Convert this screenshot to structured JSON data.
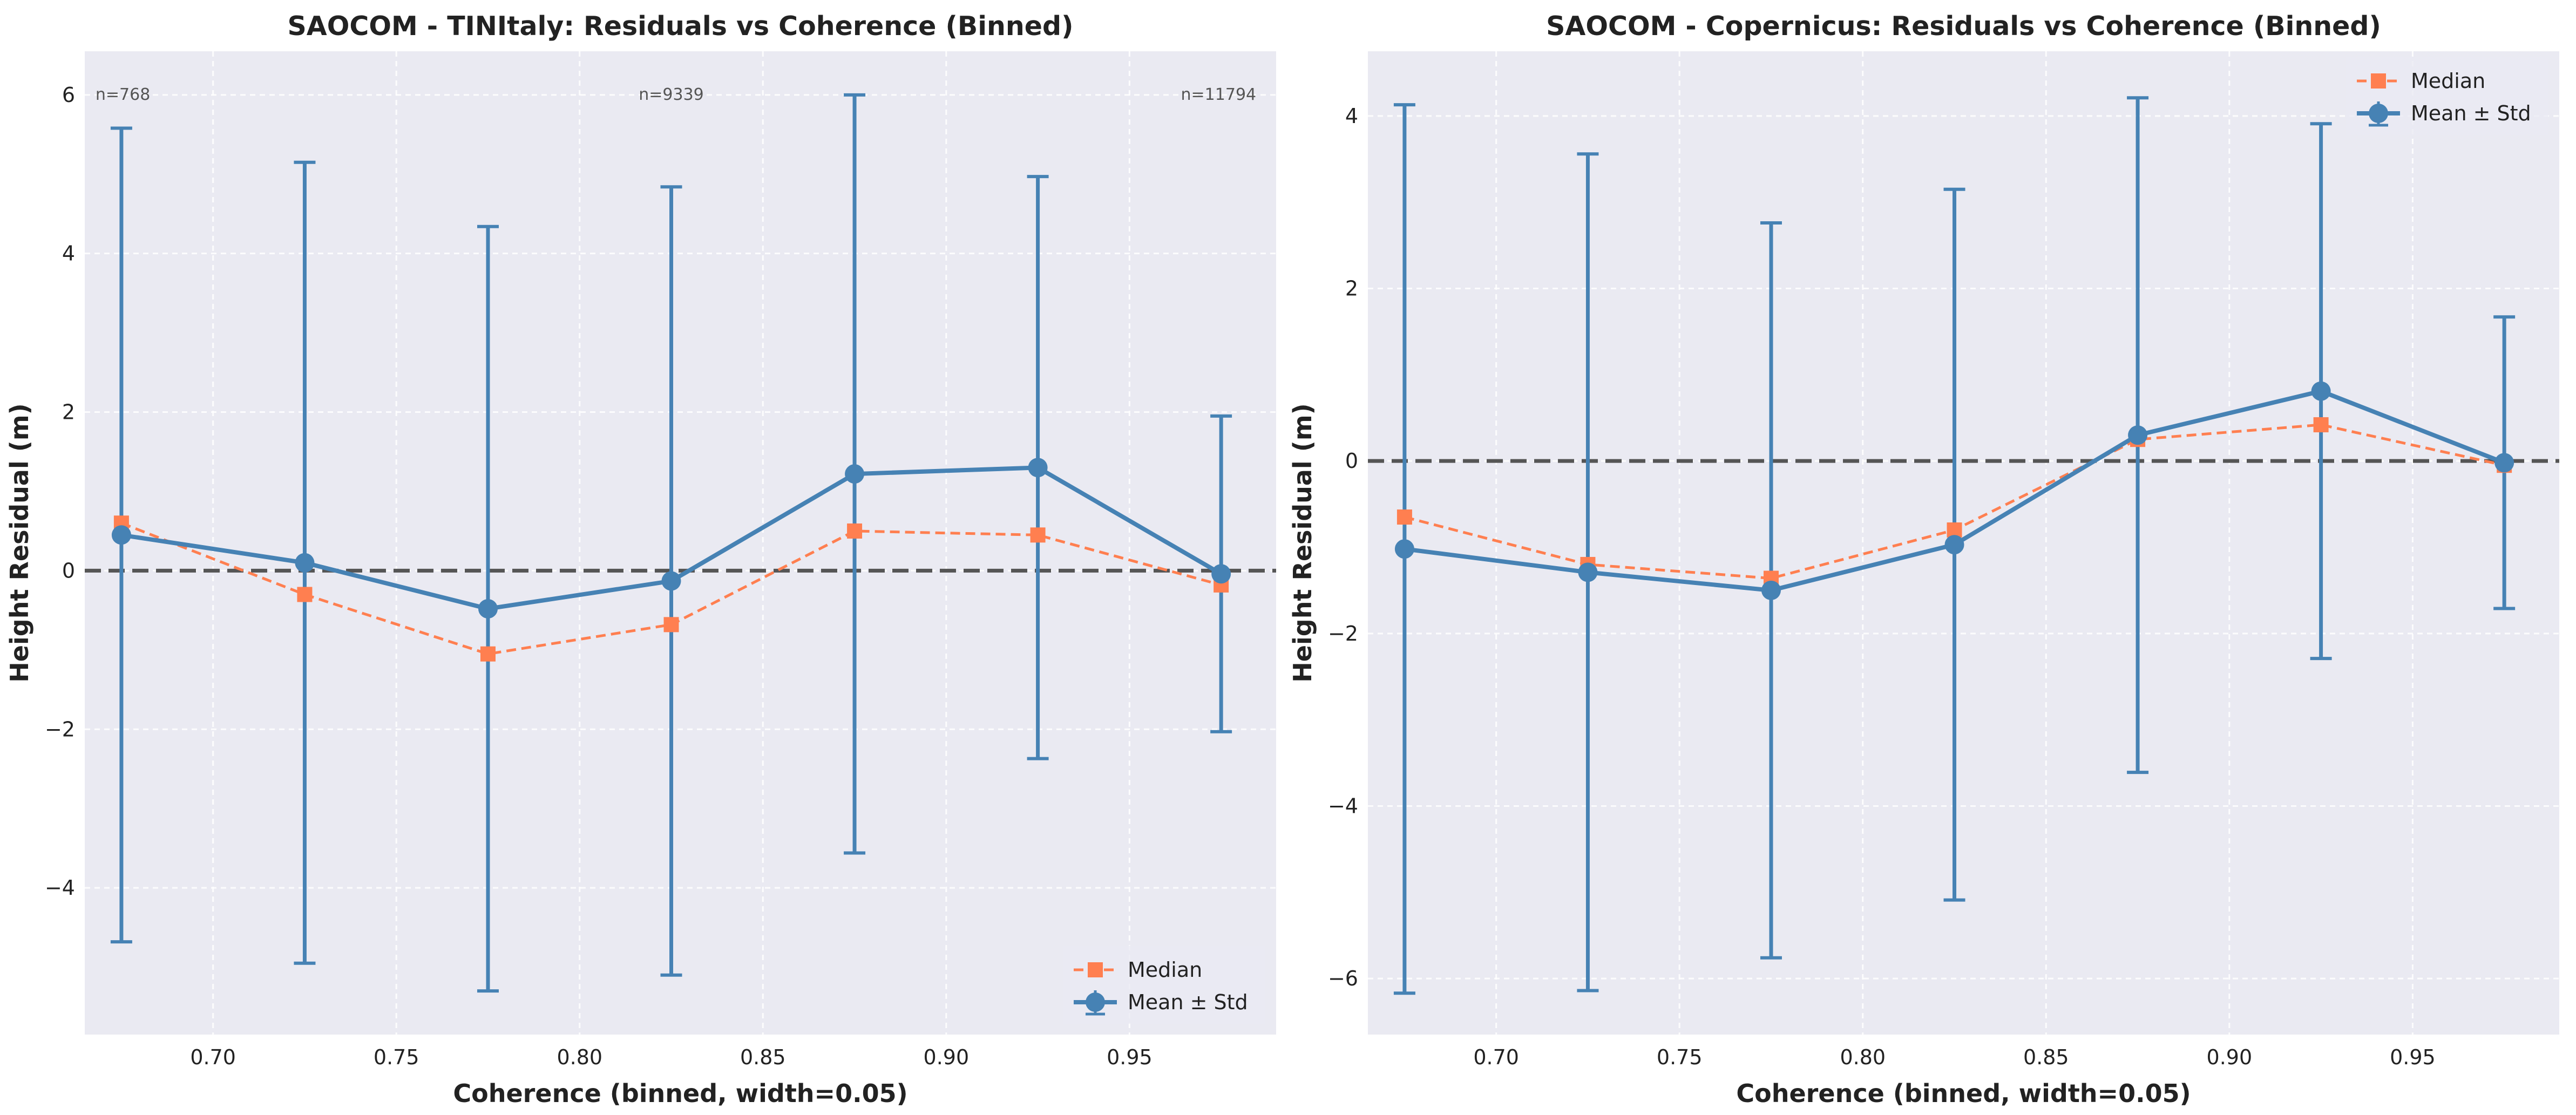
{
  "colors": {
    "mean": "#4682b4",
    "median": "#ff7f50",
    "plot_bg": "#eaeaf2",
    "grid": "#ffffff",
    "zero_line": "#555555",
    "text": "#222222"
  },
  "chart_data": [
    {
      "type": "line",
      "title": "SAOCOM - TINItaly: Residuals vs Coherence (Binned)",
      "xlabel": "Coherence (binned, width=0.05)",
      "ylabel": "Height Residual (m)",
      "xlim": [
        0.665,
        0.99
      ],
      "ylim": [
        -5.85,
        6.55
      ],
      "xticks": [
        0.7,
        0.75,
        0.8,
        0.85,
        0.9,
        0.95
      ],
      "xtick_labels": [
        "0.70",
        "0.75",
        "0.80",
        "0.85",
        "0.90",
        "0.95"
      ],
      "yticks": [
        -4,
        -2,
        0,
        2,
        4,
        6
      ],
      "ytick_labels": [
        "−4",
        "−2",
        "0",
        "2",
        "4",
        "6"
      ],
      "grid": true,
      "zero_line": 0,
      "legend_position": "lower-right",
      "x": [
        0.675,
        0.725,
        0.775,
        0.825,
        0.875,
        0.925,
        0.975
      ],
      "series": [
        {
          "name": "Median",
          "style": "dashed",
          "marker": "square",
          "values": [
            0.6,
            -0.3,
            -1.05,
            -0.68,
            0.5,
            0.45,
            -0.18
          ]
        },
        {
          "name": "Mean ± Std",
          "style": "solid",
          "marker": "circle",
          "values": [
            0.45,
            0.1,
            -0.48,
            -0.13,
            1.22,
            1.3,
            -0.04
          ],
          "std": [
            5.13,
            5.05,
            4.82,
            4.97,
            4.78,
            3.67,
            1.99
          ]
        }
      ],
      "annotations": [
        {
          "x": 0.675,
          "text": "n=768",
          "align": "start"
        },
        {
          "x": 0.825,
          "text": "n=9339",
          "align": "middle"
        },
        {
          "x": 0.975,
          "text": "n=11794",
          "align": "end"
        }
      ]
    },
    {
      "type": "line",
      "title": "SAOCOM - Copernicus: Residuals vs Coherence (Binned)",
      "xlabel": "Coherence (binned, width=0.05)",
      "ylabel": "Height Residual (m)",
      "xlim": [
        0.665,
        0.99
      ],
      "ylim": [
        -6.65,
        4.75
      ],
      "xticks": [
        0.7,
        0.75,
        0.8,
        0.85,
        0.9,
        0.95
      ],
      "xtick_labels": [
        "0.70",
        "0.75",
        "0.80",
        "0.85",
        "0.90",
        "0.95"
      ],
      "yticks": [
        -6,
        -4,
        -2,
        0,
        2,
        4
      ],
      "ytick_labels": [
        "−6",
        "−4",
        "−2",
        "0",
        "2",
        "4"
      ],
      "grid": true,
      "zero_line": 0,
      "legend_position": "upper-right",
      "x": [
        0.675,
        0.725,
        0.775,
        0.825,
        0.875,
        0.925,
        0.975
      ],
      "series": [
        {
          "name": "Median",
          "style": "dashed",
          "marker": "square",
          "values": [
            -0.65,
            -1.2,
            -1.36,
            -0.8,
            0.25,
            0.42,
            -0.05
          ]
        },
        {
          "name": "Mean ± Std",
          "style": "solid",
          "marker": "circle",
          "values": [
            -1.02,
            -1.29,
            -1.5,
            -0.97,
            0.3,
            0.81,
            -0.02
          ],
          "std": [
            5.15,
            4.85,
            4.26,
            4.12,
            3.91,
            3.1,
            1.69
          ]
        }
      ],
      "annotations": []
    }
  ]
}
